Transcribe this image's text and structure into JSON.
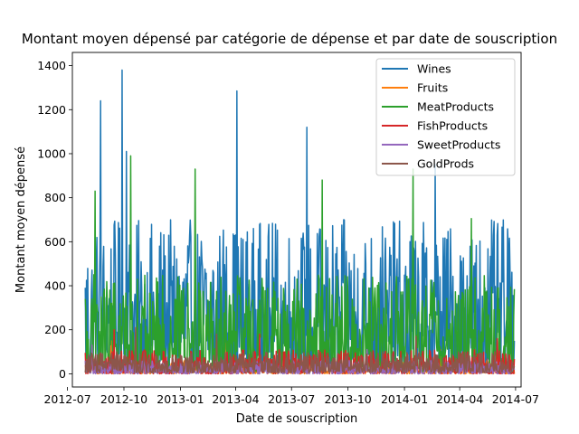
{
  "chart_data": {
    "type": "line",
    "title": "Montant moyen dépensé par catégorie de dépense et par date de souscription",
    "xlabel": "Date de souscription",
    "ylabel": "Montant moyen dépensé",
    "ylim": [
      -60,
      1460
    ],
    "xlim": [
      "2012-07-09",
      "2014-07-10"
    ],
    "xticks": [
      "2012-07",
      "2012-10",
      "2013-01",
      "2013-04",
      "2013-07",
      "2013-10",
      "2014-01",
      "2014-04",
      "2014-07"
    ],
    "xtick_dates": [
      "2012-07-01",
      "2012-10-01",
      "2013-01-01",
      "2013-04-01",
      "2013-07-01",
      "2013-10-01",
      "2014-01-01",
      "2014-04-01",
      "2014-07-01"
    ],
    "yticks": [
      0,
      200,
      400,
      600,
      800,
      1000,
      1200,
      1400
    ],
    "date_range": [
      "2012-07-30",
      "2014-06-29"
    ],
    "legend_position": "upper right",
    "grid": false,
    "series": [
      {
        "name": "Wines",
        "color": "#1f77b4",
        "typical_range": [
          20,
          700
        ],
        "peaks": [
          [
            "2012-08-24",
            1240
          ],
          [
            "2012-09-28",
            1380
          ],
          [
            "2013-04-03",
            1285
          ],
          [
            "2013-07-26",
            1120
          ],
          [
            "2012-10-05",
            1010
          ],
          [
            "2014-02-20",
            950
          ]
        ]
      },
      {
        "name": "Fruits",
        "color": "#ff7f0e",
        "typical_range": [
          0,
          60
        ],
        "peaks": [
          [
            "2012-09-10",
            150
          ],
          [
            "2013-03-15",
            140
          ],
          [
            "2014-03-01",
            110
          ]
        ]
      },
      {
        "name": "MeatProducts",
        "color": "#2ca02c",
        "typical_range": [
          10,
          450
        ],
        "peaks": [
          [
            "2012-08-15",
            830
          ],
          [
            "2012-10-12",
            990
          ],
          [
            "2013-01-25",
            930
          ],
          [
            "2014-01-15",
            930
          ],
          [
            "2013-08-20",
            880
          ],
          [
            "2014-04-20",
            705
          ]
        ]
      },
      {
        "name": "FishProducts",
        "color": "#d62728",
        "typical_range": [
          0,
          110
        ],
        "peaks": [
          [
            "2012-09-15",
            200
          ],
          [
            "2013-05-10",
            180
          ],
          [
            "2014-06-01",
            160
          ]
        ]
      },
      {
        "name": "SweetProducts",
        "color": "#9467bd",
        "typical_range": [
          0,
          60
        ],
        "peaks": [
          [
            "2012-08-10",
            130
          ],
          [
            "2013-11-01",
            110
          ]
        ]
      },
      {
        "name": "GoldProds",
        "color": "#8c564b",
        "typical_range": [
          5,
          100
        ],
        "peaks": [
          [
            "2012-10-20",
            210
          ],
          [
            "2013-03-01",
            180
          ],
          [
            "2014-01-20",
            170
          ]
        ]
      }
    ]
  }
}
